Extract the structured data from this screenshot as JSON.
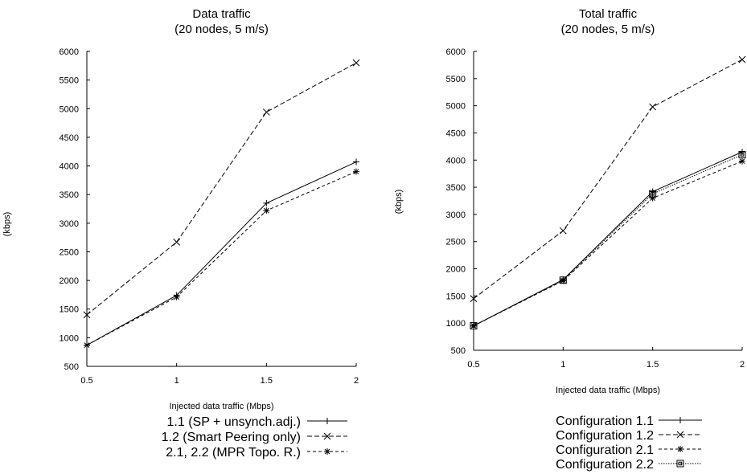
{
  "chart_data": [
    {
      "type": "line",
      "title": "Data traffic",
      "subtitle": "(20 nodes, 5 m/s)",
      "xlabel": "Injected data traffic (Mbps)",
      "ylabel": "(kbps)",
      "x": [
        0.5,
        1,
        1.5,
        2
      ],
      "x_ticks": [
        "0.5",
        "1",
        "1.5",
        "2"
      ],
      "xlim": [
        0.5,
        2
      ],
      "y_ticks": [
        "500",
        "1000",
        "1500",
        "2000",
        "2500",
        "3000",
        "3500",
        "4000",
        "4500",
        "5000",
        "5500",
        "6000"
      ],
      "ylim": [
        500,
        6000
      ],
      "grid": false,
      "legend_position": "bottom",
      "series": [
        {
          "name": "1.1 (SP + unsynch.adj.)",
          "values": [
            870,
            1740,
            3350,
            4070
          ],
          "marker": "plus",
          "dash": "solid",
          "color": "#000000"
        },
        {
          "name": "1.2 (Smart Peering only)",
          "values": [
            1400,
            2670,
            4940,
            5800
          ],
          "marker": "x",
          "dash": "long",
          "color": "#000000"
        },
        {
          "name": "2.1, 2.2 (MPR Topo. R.)",
          "values": [
            870,
            1710,
            3220,
            3900
          ],
          "marker": "star",
          "dash": "short",
          "color": "#000000"
        }
      ]
    },
    {
      "type": "line",
      "title": "Total traffic",
      "subtitle": "(20 nodes, 5 m/s)",
      "xlabel": "Injected data traffic (Mbps)",
      "ylabel": "(kbps)",
      "x": [
        0.5,
        1,
        1.5,
        2
      ],
      "x_ticks": [
        "0.5",
        "1",
        "1.5",
        "2"
      ],
      "xlim": [
        0.5,
        2
      ],
      "y_ticks": [
        "500",
        "1000",
        "1500",
        "2000",
        "2500",
        "3000",
        "3500",
        "4000",
        "4500",
        "5000",
        "5500",
        "6000"
      ],
      "ylim": [
        500,
        6000
      ],
      "grid": false,
      "legend_position": "bottom",
      "series": [
        {
          "name": "Configuration 1.1",
          "values": [
            950,
            1800,
            3420,
            4150
          ],
          "marker": "plus",
          "dash": "solid",
          "color": "#000000"
        },
        {
          "name": "Configuration 1.2",
          "values": [
            1450,
            2700,
            4980,
            5850
          ],
          "marker": "x",
          "dash": "long",
          "color": "#000000"
        },
        {
          "name": "Configuration 2.1",
          "values": [
            950,
            1780,
            3300,
            3980
          ],
          "marker": "star",
          "dash": "short",
          "color": "#000000"
        },
        {
          "name": "Configuration 2.2",
          "values": [
            950,
            1790,
            3380,
            4100
          ],
          "marker": "square",
          "dash": "dotted",
          "color": "#000000"
        }
      ]
    }
  ]
}
